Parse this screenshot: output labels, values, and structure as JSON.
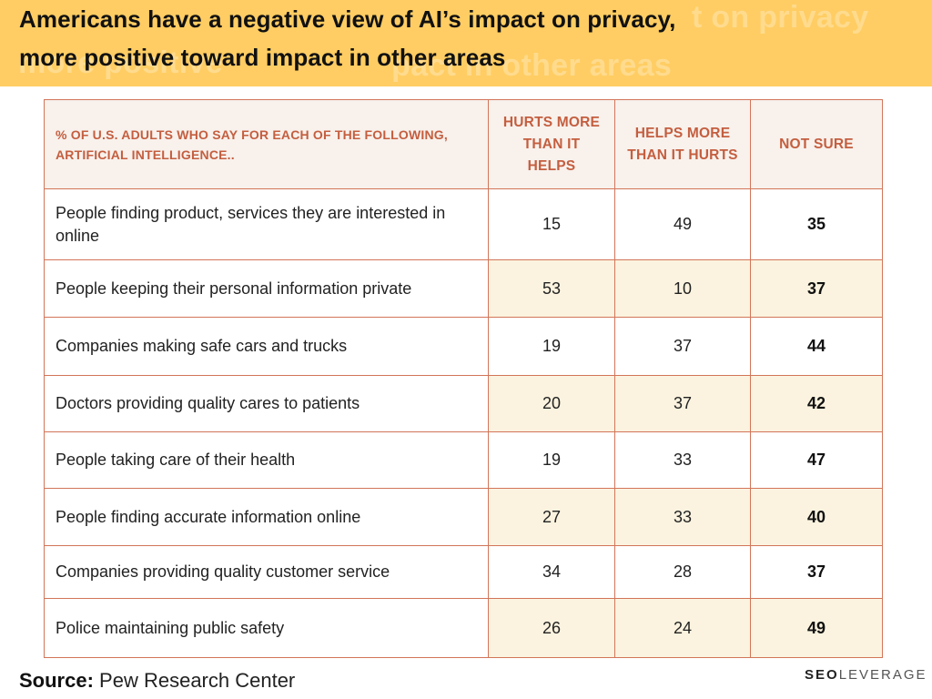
{
  "header": {
    "title_line1": "Americans have a negative view of AI’s impact on privacy,",
    "title_line2": "more positive toward impact in other areas",
    "ghost_line1": "t on privacy",
    "ghost_line2": "more positive",
    "ghost_line3": "pact in other areas"
  },
  "colors": {
    "banner": "#ffcd63",
    "header_text": "#c45e3f",
    "border": "#d27559",
    "alt_row": "#fbf3df",
    "header_bg": "#f8f1ec"
  },
  "chart_data": {
    "type": "table",
    "columns": [
      "% OF U.S. ADULTS WHO SAY FOR EACH OF THE FOLLOWING, ARTIFICIAL INTELLIGENCE..",
      "HURTS MORE THAN IT HELPS",
      "HELPS MORE THAN IT HURTS",
      "NOT SURE"
    ],
    "rows": [
      {
        "label": "People finding product, services they are interested in online",
        "hurts": "15",
        "helps": "49",
        "not_sure": "35"
      },
      {
        "label": "People keeping their personal information private",
        "hurts": "53",
        "helps": "10",
        "not_sure": "37"
      },
      {
        "label": "Companies making safe cars and trucks",
        "hurts": "19",
        "helps": "37",
        "not_sure": "44"
      },
      {
        "label": "Doctors providing quality cares to patients",
        "hurts": "20",
        "helps": "37",
        "not_sure": "42"
      },
      {
        "label": "People taking care of their health",
        "hurts": "19",
        "helps": "33",
        "not_sure": "47"
      },
      {
        "label": "People finding accurate information online",
        "hurts": "27",
        "helps": "33",
        "not_sure": "40"
      },
      {
        "label": "Companies providing quality customer service",
        "hurts": "34",
        "helps": "28",
        "not_sure": "37"
      },
      {
        "label": "Police maintaining public safety",
        "hurts": "26",
        "helps": "24",
        "not_sure": "49"
      }
    ]
  },
  "footer": {
    "source_label": "Source:",
    "source_value": "Pew Research Center",
    "brand_seo": "SEO",
    "brand_rest": "LEVERAGE"
  }
}
